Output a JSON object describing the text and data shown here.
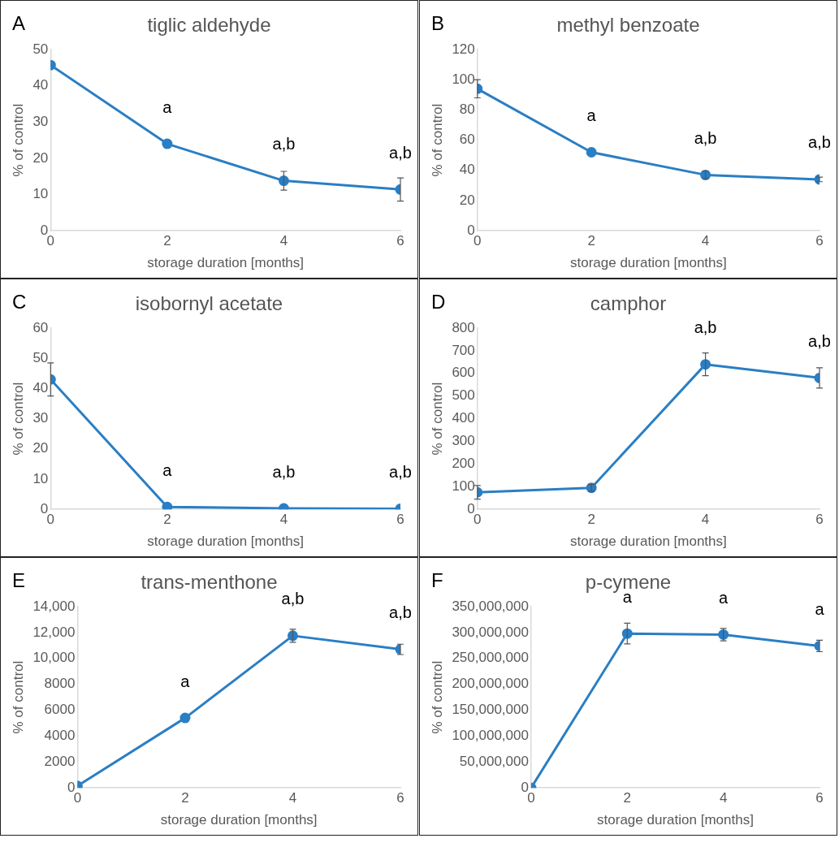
{
  "chart_data": [
    {
      "type": "line",
      "title": "tiglic aldehyde",
      "xlabel": "storage duration [months]",
      "ylabel": "% of control",
      "x": [
        0,
        2,
        4,
        6
      ],
      "xlim": [
        0,
        6
      ],
      "xticks": [
        0,
        2,
        4,
        6
      ],
      "ylim": [
        0,
        50
      ],
      "yticks": [
        0,
        10,
        20,
        30,
        40,
        50
      ],
      "grid": false,
      "marker": "circle",
      "legend": false,
      "series": [
        {
          "color": "#2a7fc4",
          "values": [
            45.7,
            24,
            13.8,
            11.4
          ],
          "errors": [
            null,
            null,
            2.6,
            3.2
          ]
        }
      ],
      "annotations": [
        "A",
        {
          "text": "a",
          "x": 2,
          "y": 24
        },
        {
          "text": "a,b",
          "x": 4,
          "y": 13.8
        },
        {
          "text": "a,b",
          "x": 6,
          "y": 11.4
        }
      ]
    },
    {
      "type": "line",
      "title": "methyl benzoate",
      "xlabel": "storage duration [months]",
      "ylabel": "% of control",
      "x": [
        0,
        2,
        4,
        6
      ],
      "xlim": [
        0,
        6
      ],
      "xticks": [
        0,
        2,
        4,
        6
      ],
      "ylim": [
        0,
        120
      ],
      "yticks": [
        0,
        20,
        40,
        60,
        80,
        100,
        120
      ],
      "grid": false,
      "marker": "circle",
      "legend": false,
      "series": [
        {
          "color": "#2a7fc4",
          "values": [
            94,
            52,
            37,
            34
          ],
          "errors": [
            6,
            null,
            2.5,
            1.5
          ]
        }
      ],
      "annotations": [
        "B",
        {
          "text": "a",
          "x": 2,
          "y": 52
        },
        {
          "text": "a,b",
          "x": 4,
          "y": 37
        },
        {
          "text": "a,b",
          "x": 6,
          "y": 34
        }
      ]
    },
    {
      "type": "line",
      "title": "isobornyl acetate",
      "xlabel": "storage duration [months]",
      "ylabel": "% of control",
      "x": [
        0,
        2,
        4,
        6
      ],
      "xlim": [
        0,
        6
      ],
      "xticks": [
        0,
        2,
        4,
        6
      ],
      "ylim": [
        0,
        60
      ],
      "yticks": [
        0,
        10,
        20,
        30,
        40,
        50,
        60
      ],
      "grid": false,
      "marker": "circle",
      "legend": false,
      "series": [
        {
          "color": "#2a7fc4",
          "values": [
            43,
            0.8,
            0.3,
            0.2
          ],
          "errors": [
            5.5,
            null,
            null,
            null
          ]
        }
      ],
      "annotations": [
        "C",
        {
          "text": "a",
          "x": 2,
          "y": 0.8
        },
        {
          "text": "a,b",
          "x": 4,
          "y": 0.3
        },
        {
          "text": "a,b",
          "x": 6,
          "y": 0.2
        }
      ]
    },
    {
      "type": "line",
      "title": "camphor",
      "xlabel": "storage duration [months]",
      "ylabel": "% of control",
      "x": [
        0,
        2,
        4,
        6
      ],
      "xlim": [
        0,
        6
      ],
      "xticks": [
        0,
        2,
        4,
        6
      ],
      "ylim": [
        0,
        800
      ],
      "yticks": [
        0,
        100,
        200,
        300,
        400,
        500,
        600,
        700,
        800
      ],
      "grid": false,
      "marker": "circle",
      "legend": false,
      "series": [
        {
          "color": "#2a7fc4",
          "values": [
            75,
            95,
            640,
            580
          ],
          "errors": [
            30,
            15,
            50,
            45
          ]
        }
      ],
      "annotations": [
        "D",
        {
          "text": "a,b",
          "x": 4,
          "y": 640
        },
        {
          "text": "a,b",
          "x": 6,
          "y": 580
        }
      ]
    },
    {
      "type": "line",
      "title": "trans-menthone",
      "xlabel": "storage duration [months]",
      "ylabel": "% of control",
      "x": [
        0,
        2,
        4,
        6
      ],
      "xlim": [
        0,
        6
      ],
      "xticks": [
        0,
        2,
        4,
        6
      ],
      "ylim": [
        0,
        14000
      ],
      "yticks": [
        0,
        2000,
        4000,
        6000,
        8000,
        {
          "value": 10000,
          "label": "10,000"
        },
        {
          "value": 12000,
          "label": "12,000"
        },
        {
          "value": 14000,
          "label": "14,000"
        }
      ],
      "grid": false,
      "marker": "circle",
      "legend": false,
      "series": [
        {
          "color": "#2a7fc4",
          "values": [
            150,
            5400,
            11750,
            10700
          ],
          "errors": [
            null,
            null,
            500,
            400
          ]
        }
      ],
      "annotations": [
        "E",
        {
          "text": "a",
          "x": 2,
          "y": 5400
        },
        {
          "text": "a,b",
          "x": 4,
          "y": 11750
        },
        {
          "text": "a,b",
          "x": 6,
          "y": 10700
        }
      ]
    },
    {
      "type": "line",
      "title": "p-cymene",
      "xlabel": "storage duration [months]",
      "ylabel": "% of control",
      "x": [
        0,
        2,
        4,
        6
      ],
      "xlim": [
        0,
        6
      ],
      "xticks": [
        0,
        2,
        4,
        6
      ],
      "ylim": [
        0,
        350000000
      ],
      "yticks": [
        0,
        {
          "value": 50000000,
          "label": "50,000,000"
        },
        {
          "value": 100000000,
          "label": "100,000,000"
        },
        {
          "value": 150000000,
          "label": "150,000,000"
        },
        {
          "value": 200000000,
          "label": "200,000,000"
        },
        {
          "value": 250000000,
          "label": "250,000,000"
        },
        {
          "value": 300000000,
          "label": "300,000,000"
        },
        {
          "value": 350000000,
          "label": "350,000,000"
        }
      ],
      "grid": false,
      "marker": "circle",
      "legend": false,
      "series": [
        {
          "color": "#2a7fc4",
          "values": [
            0,
            298000000,
            296000000,
            274000000
          ],
          "errors": [
            null,
            20000000,
            12000000,
            11000000
          ]
        }
      ],
      "annotations": [
        "F",
        {
          "text": "a",
          "x": 2,
          "y": 298000000
        },
        {
          "text": "a",
          "x": 4,
          "y": 296000000
        },
        {
          "text": "a",
          "x": 6,
          "y": 274000000
        }
      ]
    }
  ]
}
